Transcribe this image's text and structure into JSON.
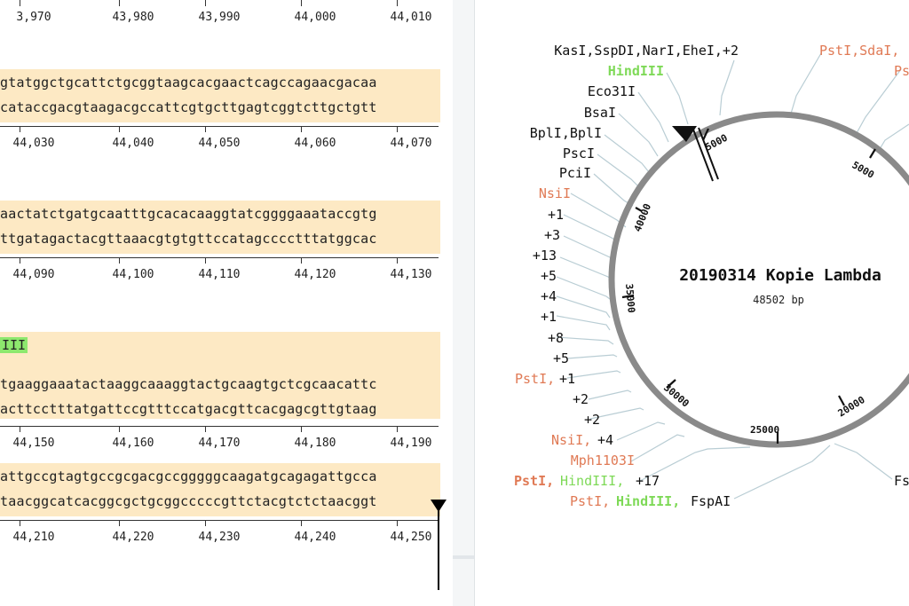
{
  "sequence_view": {
    "rows": [
      {
        "ticks": [],
        "ruler_labels": [
          "3,970",
          "43,980",
          "43,990",
          "44,000",
          "44,010"
        ],
        "top_strand": "",
        "bottom_strand": "",
        "feature": ""
      },
      {
        "ruler_labels": [
          "44,030",
          "44,040",
          "44,050",
          "44,060",
          "44,070"
        ],
        "top_strand": "gtatggctgcattctgcggtaagcacgaactcagccagaacgacaa",
        "bottom_strand": "cataccgacgtaagacgccattcgtgcttgagtcggtcttgctgtt",
        "feature": ""
      },
      {
        "ruler_labels": [
          "44,090",
          "44,100",
          "44,110",
          "44,120",
          "44,130"
        ],
        "top_strand": "aactatctgatgcaatttgcacacaaggtatcggggaaataccgtg",
        "bottom_strand": "ttgatagactacgttaaacgtgtgttccatagcccctttatggcac",
        "feature": ""
      },
      {
        "ruler_labels": [
          "44,150",
          "44,160",
          "44,170",
          "44,180",
          "44,190"
        ],
        "top_strand": "tgaaggaaatactaaggcaaaggtactgcaagtgctcgcaacattc",
        "bottom_strand": "acttcctttatgattccgtttccatgacgttcacgagcgttgtaag",
        "feature": "III"
      },
      {
        "ruler_labels": [
          "44,210",
          "44,220",
          "44,230",
          "44,240",
          "44,250"
        ],
        "top_strand": "attgccgtagtgccgcgacgccgggggcaagatgcagagattgcca",
        "bottom_strand": "taacggcatcacggcgctgcggcccccgttctacgtctctaacggt",
        "feature": ""
      }
    ]
  },
  "map": {
    "title": "20190314 Kopie Lambda",
    "length_label": "48502 bp",
    "ring_ticks": [
      "5000",
      "5000",
      "40000",
      "35000",
      "30000",
      "25000",
      "20000"
    ],
    "enzymes_left": [
      {
        "name": "KasI,SspDI,NarI,EheI,+2",
        "color": "#111"
      },
      {
        "name": "HindIII",
        "color": "#7ed957",
        "bold": true
      },
      {
        "name": "Eco31I",
        "color": "#111"
      },
      {
        "name": "BsaI",
        "color": "#111"
      },
      {
        "name": "BplI,BplI",
        "color": "#111"
      },
      {
        "name": "PscI",
        "color": "#111"
      },
      {
        "name": "PciI",
        "color": "#111"
      },
      {
        "name": "NsiI",
        "color": "#e07a55"
      },
      {
        "name": "+1",
        "color": "#111"
      },
      {
        "name": "+3",
        "color": "#111"
      },
      {
        "name": "+13",
        "color": "#111"
      },
      {
        "name": "+5",
        "color": "#111"
      },
      {
        "name": "+4",
        "color": "#111"
      },
      {
        "name": "+1",
        "color": "#111"
      },
      {
        "name": "+8",
        "color": "#111"
      },
      {
        "name": "+5",
        "color": "#111"
      },
      {
        "name": "+2",
        "color": "#111"
      },
      {
        "name": "+2",
        "color": "#111"
      },
      {
        "name": "Mph1103I",
        "color": "#e07a55"
      }
    ],
    "pst_plus1": {
      "a": "PstI,",
      "b": "+1"
    },
    "nsi_plus4": {
      "a": "NsiI,",
      "b": "+4"
    },
    "pst_hind_17": {
      "a": "PstI,",
      "b": "HindIII,",
      "c": "+17"
    },
    "pst_hind_fsp": {
      "a": "PstI,",
      "b": "HindIII,",
      "c": "FspAI"
    },
    "enzymes_right": {
      "pst_sda": "PstI,SdaI,",
      "ps": "Ps",
      "fs": "Fs"
    },
    "colors": {
      "ring": "#8a8a8a",
      "enzyme_orange": "#e07a55",
      "enzyme_green": "#7ed957",
      "line": "#b9cdd4"
    }
  }
}
